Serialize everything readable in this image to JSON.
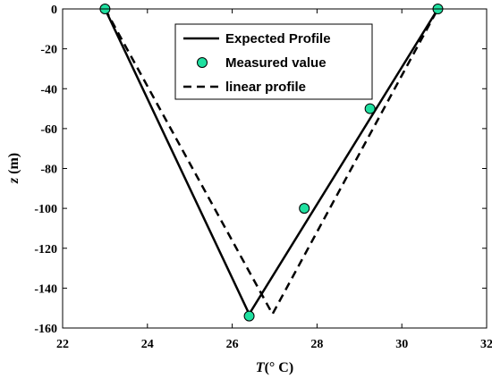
{
  "chart_data": {
    "type": "line",
    "xlabel_italic": "T",
    "xlabel_rest": "(° C)",
    "ylabel_italic": "z",
    "ylabel_rest": " (m)",
    "xlim": [
      22,
      32
    ],
    "ylim": [
      -160,
      0
    ],
    "xticks": [
      22,
      24,
      26,
      28,
      30,
      32
    ],
    "yticks": [
      0,
      -20,
      -40,
      -60,
      -80,
      -100,
      -120,
      -140,
      -160
    ],
    "grid": false,
    "legend_position": "top-center",
    "series": [
      {
        "name": "Expected Profile",
        "style": "solid",
        "color": "#000000",
        "x": [
          23.0,
          26.4,
          30.85
        ],
        "y": [
          0,
          -153,
          0
        ]
      },
      {
        "name": "Measured value",
        "style": "markers",
        "color": "#1fe0a0",
        "x": [
          23.0,
          26.4,
          27.7,
          29.25,
          30.85
        ],
        "y": [
          0,
          -154,
          -100,
          -50,
          0
        ]
      },
      {
        "name": "linear profile",
        "style": "dashed",
        "color": "#000000",
        "x": [
          23.0,
          26.95,
          30.85
        ],
        "y": [
          0,
          -153,
          0
        ]
      }
    ]
  }
}
